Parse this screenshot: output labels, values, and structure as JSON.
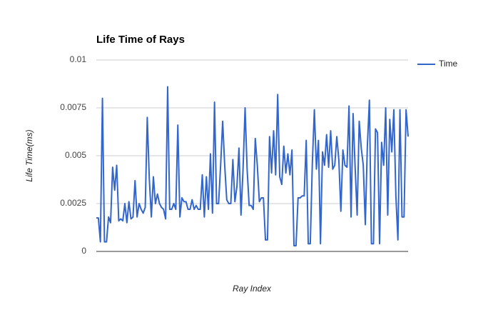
{
  "chart_data": {
    "type": "line",
    "title": "Life Time of Rays",
    "x_label": "Ray Index",
    "y_label": "Life Time(ms)",
    "series": [
      {
        "name": "Time",
        "color": "#3366cc",
        "values": [
          0.00175,
          0.00175,
          0.0005,
          0.008,
          0.0005,
          0.0005,
          0.0018,
          0.0015,
          0.0044,
          0.0032,
          0.0045,
          0.0016,
          0.0017,
          0.0016,
          0.0025,
          0.0015,
          0.0026,
          0.0017,
          0.0018,
          0.0037,
          0.0018,
          0.0025,
          0.0022,
          0.002,
          0.0023,
          0.007,
          0.0038,
          0.0018,
          0.0039,
          0.0025,
          0.003,
          0.0025,
          0.0023,
          0.0022,
          0.0017,
          0.0086,
          0.0022,
          0.0022,
          0.0025,
          0.0022,
          0.0066,
          0.0018,
          0.0028,
          0.0026,
          0.0026,
          0.0022,
          0.0022,
          0.0027,
          0.0022,
          0.0024,
          0.0022,
          0.0022,
          0.004,
          0.0018,
          0.0039,
          0.0022,
          0.0051,
          0.002,
          0.0078,
          0.0025,
          0.0025,
          0.0045,
          0.0068,
          0.0045,
          0.0027,
          0.0025,
          0.0025,
          0.0048,
          0.0026,
          0.0034,
          0.0054,
          0.0019,
          0.0043,
          0.0075,
          0.0043,
          0.0024,
          0.0024,
          0.0022,
          0.0059,
          0.0045,
          0.0026,
          0.0028,
          0.0028,
          0.0006,
          0.0006,
          0.006,
          0.0041,
          0.0063,
          0.004,
          0.0082,
          0.0039,
          0.0035,
          0.0055,
          0.0041,
          0.0051,
          0.004,
          0.0053,
          0.0003,
          0.0003,
          0.0028,
          0.0028,
          0.0029,
          0.0029,
          0.0058,
          0.0004,
          0.0004,
          0.0046,
          0.0074,
          0.0043,
          0.0058,
          0.0004,
          0.0052,
          0.0045,
          0.0061,
          0.0044,
          0.0063,
          0.0043,
          0.0045,
          0.006,
          0.0048,
          0.0021,
          0.0053,
          0.0045,
          0.0044,
          0.0076,
          0.0018,
          0.0072,
          0.0044,
          0.0019,
          0.0068,
          0.0054,
          0.0045,
          0.0014,
          0.0055,
          0.0079,
          0.0004,
          0.0004,
          0.0064,
          0.0062,
          0.0004,
          0.0057,
          0.0045,
          0.0075,
          0.0019,
          0.0069,
          0.0052,
          0.0074,
          0.0029,
          0.0006,
          0.0074,
          0.0018,
          0.0018,
          0.0074,
          0.006
        ]
      }
    ],
    "ylim": [
      0,
      0.01
    ],
    "yticks": [
      0,
      0.0025,
      0.005,
      0.0075,
      0.01
    ],
    "grid": true,
    "legend": "right"
  }
}
